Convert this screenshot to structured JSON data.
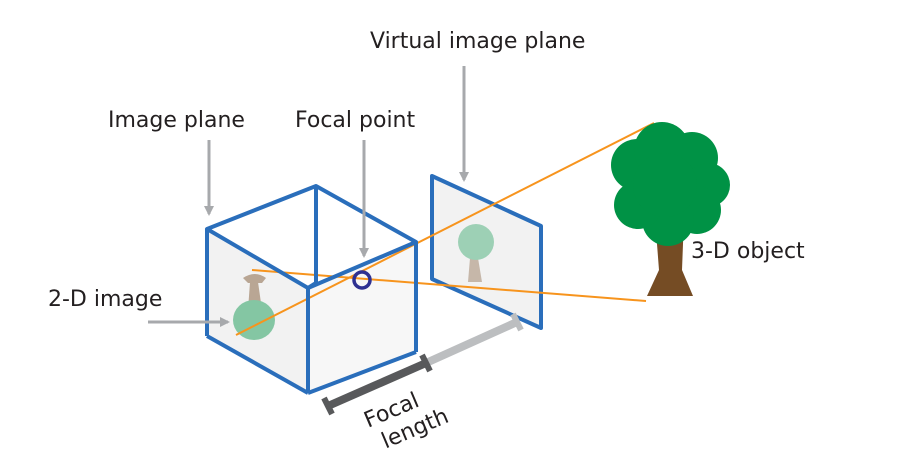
{
  "labels": {
    "virtual_image_plane": "Virtual image plane",
    "image_plane": "Image plane",
    "focal_point": "Focal point",
    "two_d_image": "2-D image",
    "three_d_object": "3-D object",
    "focal_length_line1": "Focal",
    "focal_length_line2": "length"
  },
  "colors": {
    "camera_box": "#2a6ebb",
    "light_ray": "#f7941d",
    "pointer_arrow": "#a7a9ac",
    "focal_length_dark": "#58595b",
    "focal_length_light": "#bcbec0",
    "focal_point_ring": "#2e3192",
    "tree_foliage": "#009245",
    "tree_trunk": "#754c24",
    "plane_fill": "#f2f2f2"
  }
}
